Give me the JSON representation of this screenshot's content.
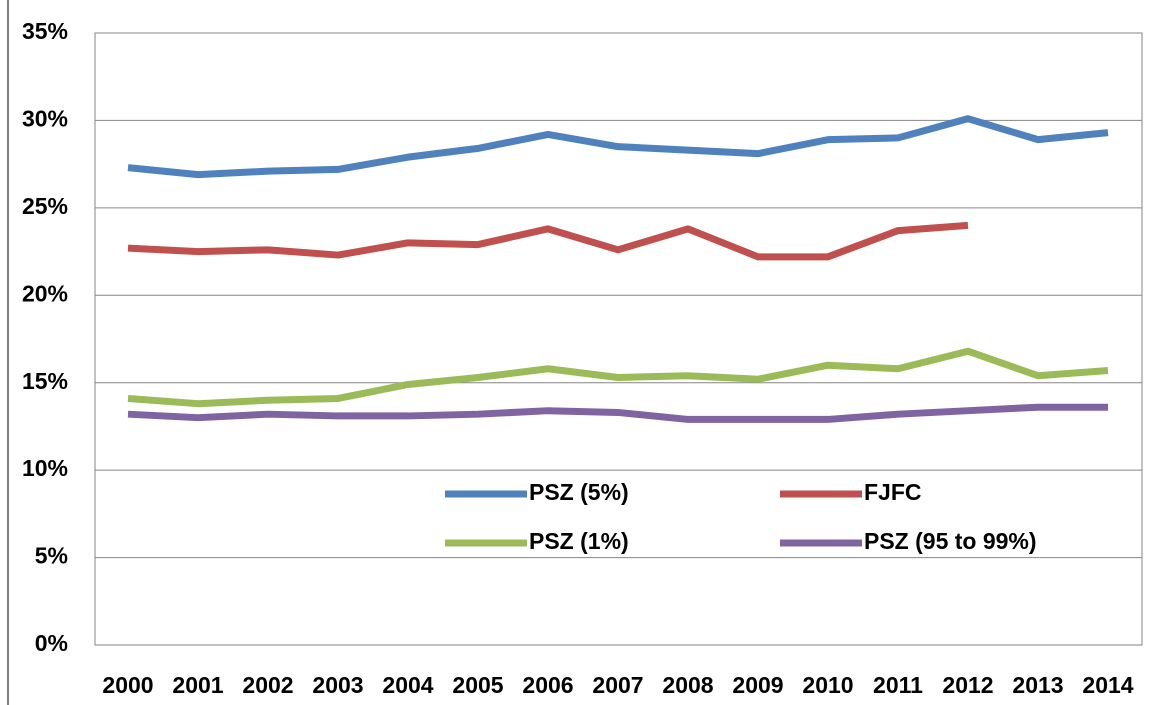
{
  "chart_data": {
    "type": "line",
    "categories": [
      "2000",
      "2001",
      "2002",
      "2003",
      "2004",
      "2005",
      "2006",
      "2007",
      "2008",
      "2009",
      "2010",
      "2011",
      "2012",
      "2013",
      "2014"
    ],
    "series": [
      {
        "name": "PSZ (5%)",
        "color": "#4f81bd",
        "values": [
          27.3,
          26.9,
          27.1,
          27.2,
          27.9,
          28.4,
          29.2,
          28.5,
          28.3,
          28.1,
          28.9,
          29.0,
          30.1,
          28.9,
          29.3
        ]
      },
      {
        "name": "FJFC",
        "color": "#c0504d",
        "values": [
          22.7,
          22.5,
          22.6,
          22.3,
          23.0,
          22.9,
          23.8,
          22.6,
          23.8,
          22.2,
          22.2,
          23.7,
          24.0,
          null,
          null
        ]
      },
      {
        "name": "PSZ (1%)",
        "color": "#9bbb59",
        "values": [
          14.1,
          13.8,
          14.0,
          14.1,
          14.9,
          15.3,
          15.8,
          15.3,
          15.4,
          15.2,
          16.0,
          15.8,
          16.8,
          15.4,
          15.7
        ]
      },
      {
        "name": "PSZ (95 to 99%)",
        "color": "#8064a2",
        "values": [
          13.2,
          13.0,
          13.2,
          13.1,
          13.1,
          13.2,
          13.4,
          13.3,
          12.9,
          12.9,
          12.9,
          13.2,
          13.4,
          13.6,
          13.6
        ]
      }
    ],
    "ylim": [
      0,
      35
    ],
    "yticks": [
      {
        "value": 0,
        "label": "0%"
      },
      {
        "value": 5,
        "label": "5%"
      },
      {
        "value": 10,
        "label": "10%"
      },
      {
        "value": 15,
        "label": "15%"
      },
      {
        "value": 20,
        "label": "20%"
      },
      {
        "value": 25,
        "label": "25%"
      },
      {
        "value": 30,
        "label": "30%"
      },
      {
        "value": 35,
        "label": "35%"
      }
    ],
    "grid": true
  }
}
